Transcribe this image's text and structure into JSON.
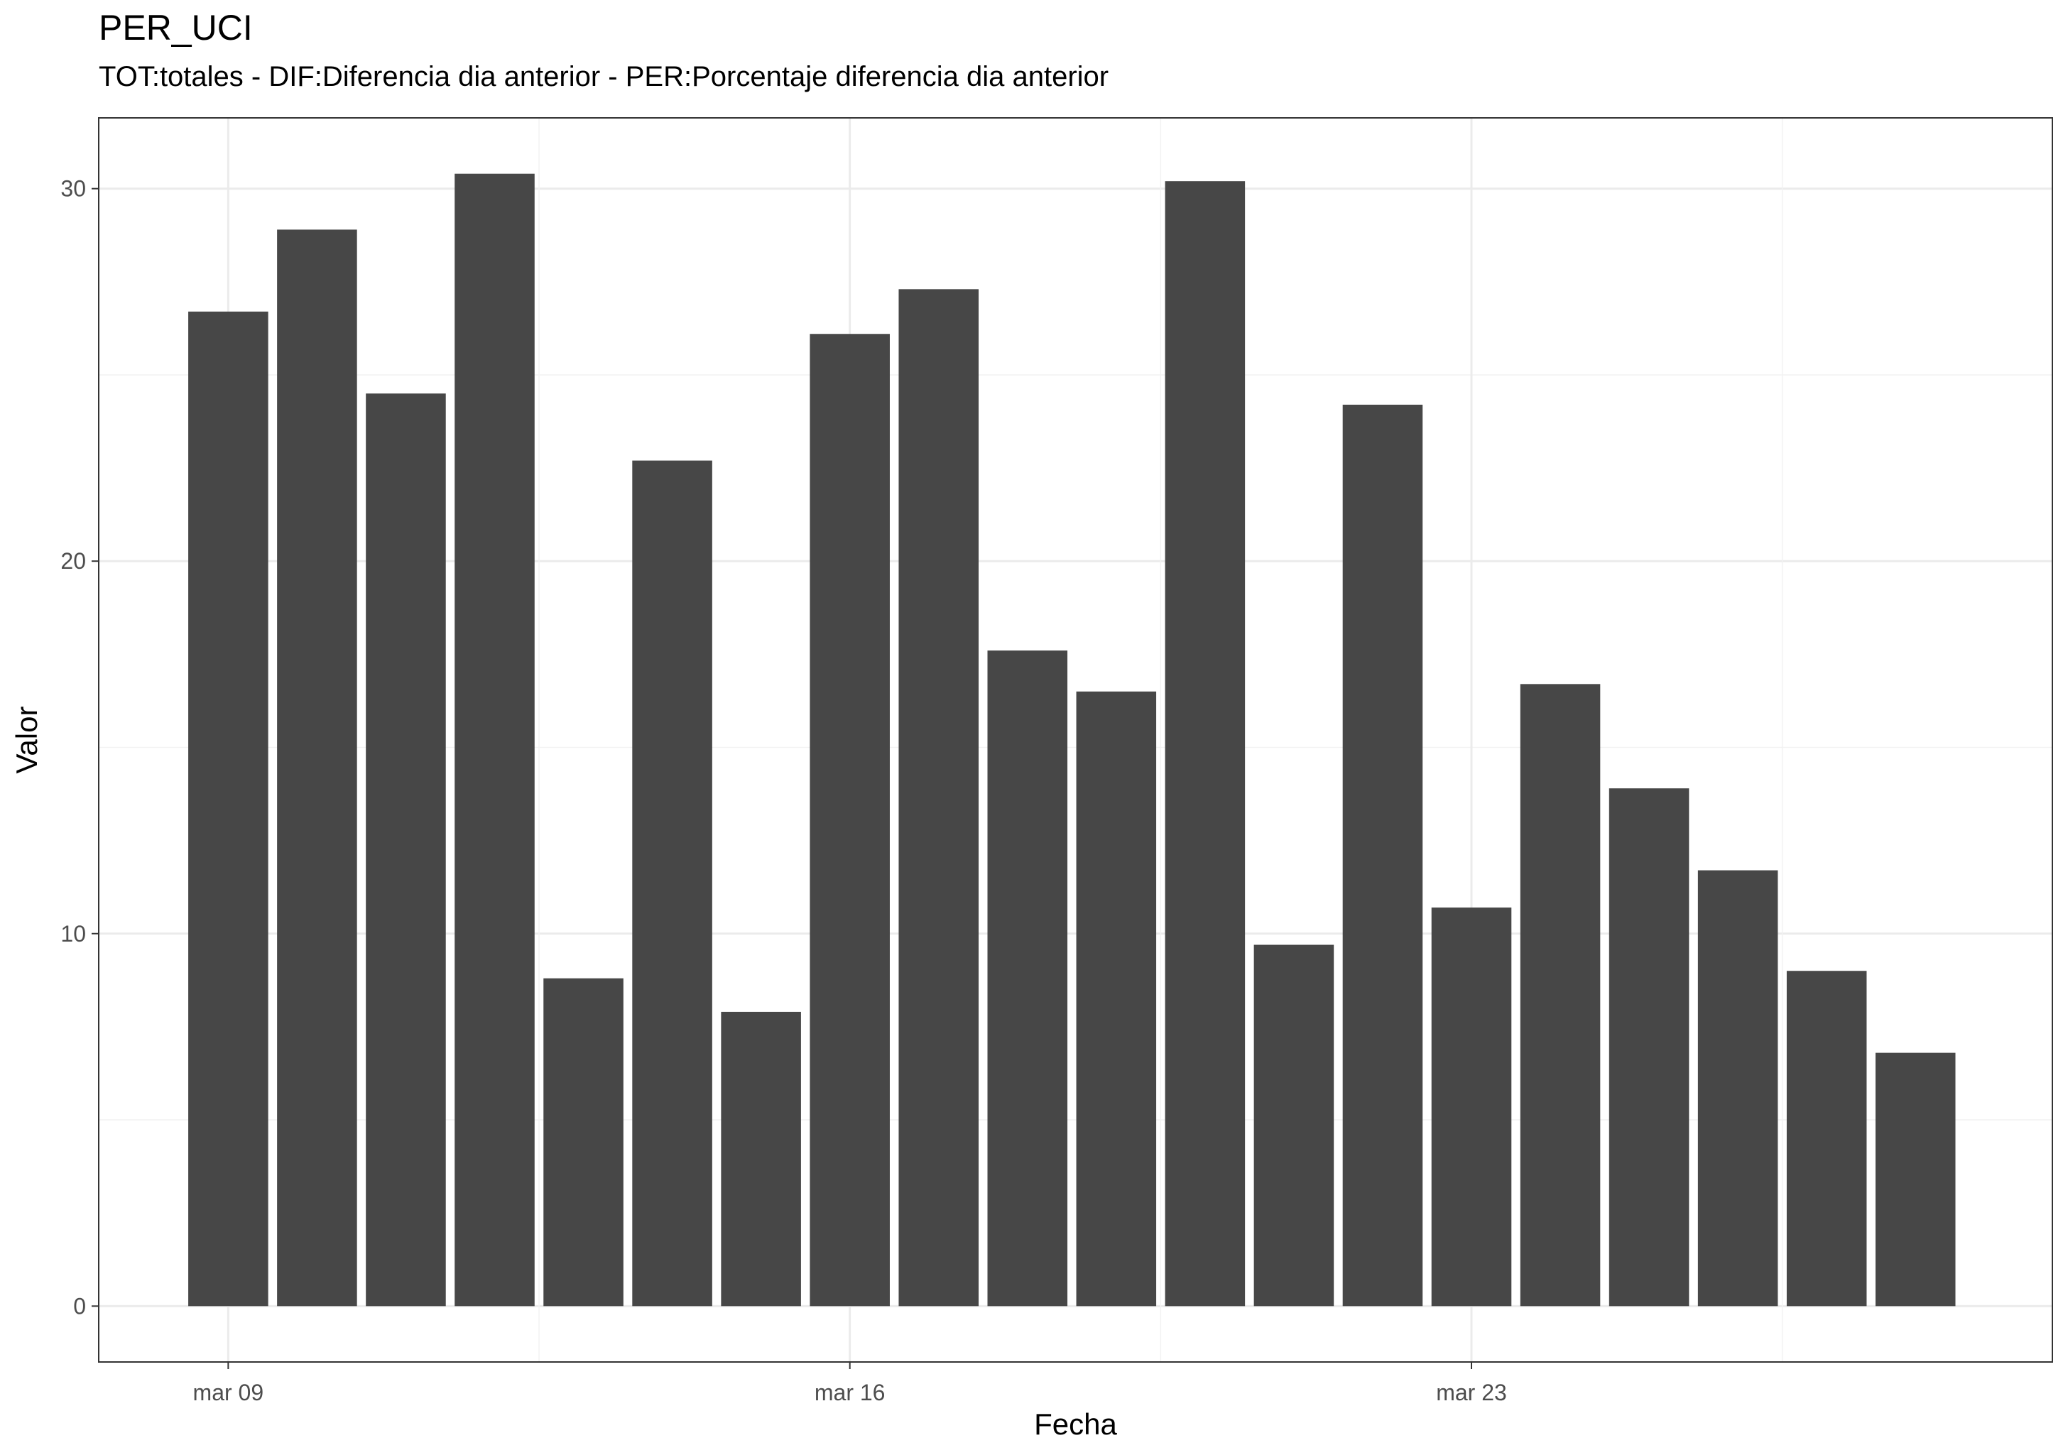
{
  "chart_data": {
    "type": "bar",
    "title": "PER_UCI",
    "subtitle": "TOT:totales - DIF:Diferencia dia anterior - PER:Porcentaje diferencia dia anterior",
    "xlabel": "Fecha",
    "ylabel": "Valor",
    "categories": [
      "2020-03-09",
      "2020-03-10",
      "2020-03-11",
      "2020-03-12",
      "2020-03-13",
      "2020-03-14",
      "2020-03-15",
      "2020-03-16",
      "2020-03-17",
      "2020-03-18",
      "2020-03-19",
      "2020-03-20",
      "2020-03-21",
      "2020-03-22",
      "2020-03-23",
      "2020-03-24",
      "2020-03-25",
      "2020-03-26",
      "2020-03-27",
      "2020-03-28"
    ],
    "values": [
      26.7,
      28.9,
      24.5,
      30.4,
      8.8,
      22.7,
      7.9,
      26.1,
      27.3,
      17.6,
      16.5,
      30.2,
      9.7,
      24.2,
      10.7,
      16.7,
      13.9,
      11.7,
      9.0,
      6.8
    ],
    "x_ticks": [
      {
        "date": "2020-03-09",
        "label": "mar 09"
      },
      {
        "date": "2020-03-16",
        "label": "mar 16"
      },
      {
        "date": "2020-03-23",
        "label": "mar 23"
      }
    ],
    "y_ticks": [
      0,
      10,
      20,
      30
    ],
    "ylim": [
      -1.5,
      31.9
    ],
    "xlim": [
      "2020-03-07 13:00",
      "2020-03-29 13:00"
    ],
    "grid": true,
    "bar_color": "#474747"
  }
}
